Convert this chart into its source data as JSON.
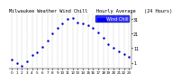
{
  "title": "Milwaukee Weather Wind Chill   Hourly Average   (24 Hours)",
  "hours": [
    0,
    1,
    2,
    3,
    4,
    5,
    6,
    7,
    8,
    9,
    10,
    11,
    12,
    13,
    14,
    15,
    16,
    17,
    18,
    19,
    20,
    21,
    22,
    23
  ],
  "wind_chill": [
    3,
    1,
    -1,
    2,
    6,
    8,
    12,
    16,
    21,
    25,
    28,
    31,
    32,
    29,
    28,
    27,
    25,
    22,
    18,
    14,
    11,
    9,
    7,
    5
  ],
  "line_color": "#0000cc",
  "bg_color": "#ffffff",
  "grid_color": "#aaaaaa",
  "legend_label": "Wind Chill",
  "legend_facecolor": "#0000ff",
  "legend_textcolor": "#ffffff",
  "ylim_min": -3,
  "ylim_max": 35,
  "yticks": [
    1,
    11,
    21,
    31
  ],
  "ylabel_fontsize": 3.5,
  "xlabel_fontsize": 3.0,
  "title_fontsize": 3.8,
  "marker_size": 1.5
}
